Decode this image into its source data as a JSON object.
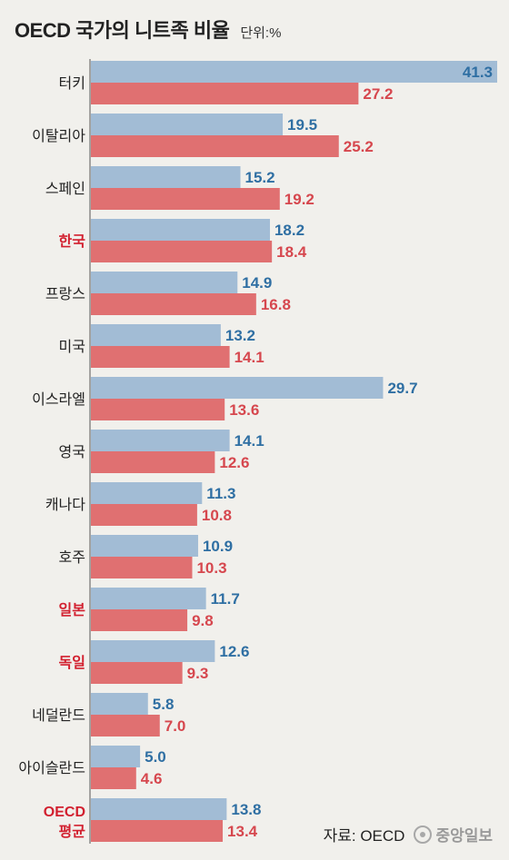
{
  "header": {
    "title": "OECD 국가의 니트족 비율",
    "unit": "단위:%"
  },
  "source": {
    "text": "자료: OECD",
    "logo": "중앙일보"
  },
  "colors": {
    "bar_top": "#a2bcd5",
    "bar_bottom": "#e07071",
    "label_top": "#2f6fa3",
    "label_bottom": "#d6474e",
    "category_normal": "#222222",
    "category_highlight": "#d2202f"
  },
  "chart_data": {
    "type": "bar",
    "orientation": "horizontal",
    "title": "OECD 국가의 니트족 비율",
    "unit": "단위:%",
    "categories": [
      "터키",
      "이탈리아",
      "스페인",
      "한국",
      "프랑스",
      "미국",
      "이스라엘",
      "영국",
      "캐나다",
      "호주",
      "일본",
      "독일",
      "네덜란드",
      "아이슬란드",
      "OECD 평균"
    ],
    "highlight": [
      "한국",
      "일본",
      "독일",
      "OECD 평균"
    ],
    "series": [
      {
        "values": [
          41.3,
          19.5,
          15.2,
          18.2,
          14.9,
          13.2,
          29.7,
          14.1,
          11.3,
          10.9,
          11.7,
          12.6,
          5.8,
          5.0,
          13.8
        ]
      },
      {
        "values": [
          27.2,
          25.2,
          19.2,
          18.4,
          16.8,
          14.1,
          13.6,
          12.6,
          10.8,
          10.3,
          9.8,
          9.3,
          7.0,
          4.6,
          13.4
        ]
      }
    ],
    "value_labels": [
      [
        "41.3",
        "19.5",
        "15.2",
        "18.2",
        "14.9",
        "13.2",
        "29.7",
        "14.1",
        "11.3",
        "10.9",
        "11.7",
        "12.6",
        "5.8",
        "5.0",
        "13.8"
      ],
      [
        "27.2",
        "25.2",
        "19.2",
        "18.4",
        "16.8",
        "14.1",
        "13.6",
        "12.6",
        "10.8",
        "10.3",
        "9.8",
        "9.3",
        "7.0",
        "4.6",
        "13.4"
      ]
    ],
    "xlim": [
      0,
      41.3
    ],
    "grid": false,
    "legend": "none"
  }
}
